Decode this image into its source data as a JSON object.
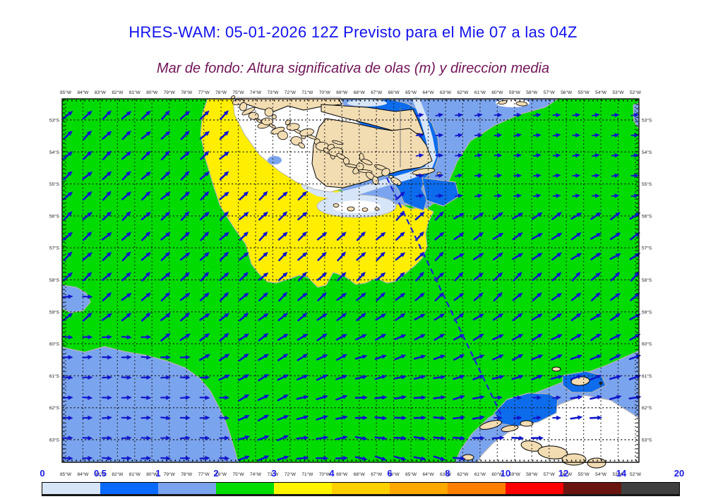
{
  "title": {
    "text": "HRES-WAM: 05-01-2026 12Z Previsto para el Mie 07 a las 04Z",
    "color": "#1212EE"
  },
  "subtitle": {
    "text": "Mar de fondo: Altura significativa de olas (m) y direccion media",
    "color": "#701458"
  },
  "map": {
    "lon_labels": [
      "85°W",
      "84°W",
      "83°W",
      "82°W",
      "81°W",
      "80°W",
      "79°W",
      "78°W",
      "77°W",
      "76°W",
      "75°W",
      "74°W",
      "73°W",
      "72°W",
      "71°W",
      "70°W",
      "69°W",
      "68°W",
      "67°W",
      "66°W",
      "65°W",
      "64°W",
      "63°W",
      "62°W",
      "61°W",
      "60°W",
      "59°W",
      "58°W",
      "57°W",
      "56°W",
      "55°W",
      "54°W",
      "53°W",
      "52°W"
    ],
    "lat_labels": [
      "53°S",
      "54°S",
      "55°S",
      "56°S",
      "57°S",
      "58°S",
      "59°S",
      "60°S",
      "61°S",
      "62°S",
      "63°S"
    ],
    "colors": {
      "sea_0_05": "#D7E5F8",
      "sea_05_1": "#0D6CEC",
      "sea_1_2": "#7BA4EE",
      "sea_2_3": "#02DB02",
      "sea_3_4": "#FFEE00",
      "land": "#F2DCB2",
      "channel_white": "#FFFFFF",
      "coast_outline": "#000000",
      "region_edge": "#B4B4B4",
      "arrow": "#1016CB",
      "grid_dots": "#1A1A1A",
      "track_line": "#2026D6",
      "axis_text": "#222222",
      "political_border": "#777777"
    }
  },
  "legend": {
    "tick_labels": [
      "0",
      "0.5",
      "1",
      "2",
      "3",
      "4",
      "6",
      "8",
      "10",
      "12",
      "14",
      "20"
    ],
    "segment_colors": [
      "#D7E5F8",
      "#0A6AFF",
      "#7BA4EE",
      "#00DD00",
      "#FFF500",
      "#FFD000",
      "#FFA800",
      "#FF8000",
      "#FF0000",
      "#6B1510",
      "#3F3F3F"
    ],
    "tick_color": "#1A1AEE"
  },
  "chart_data": {
    "type": "heatmap",
    "title": "HRES-WAM: 05-01-2026 12Z Previsto para el Mie 07 a las 04Z",
    "subtitle": "Mar de fondo: Altura significativa de olas (m) y direccion media",
    "units": "m",
    "lon_range": [
      "85°W",
      "52°W"
    ],
    "lat_range": [
      "53°S",
      "63°S"
    ],
    "colorbar_bins_m": [
      0,
      0.5,
      1,
      2,
      3,
      4,
      6,
      8,
      10,
      12,
      14,
      20
    ],
    "colorbar_colors": [
      "#D7E5F8",
      "#0A6AFF",
      "#7BA4EE",
      "#00DD00",
      "#FFF500",
      "#FFD000",
      "#FFA800",
      "#FF8000",
      "#FF0000",
      "#6B1510",
      "#3F3F3F"
    ],
    "field_summary": {
      "swell_height_regions_m": {
        "open_pacific_and_drake": "2-3",
        "lobe_sw_of_tierra_del_fuego": "3-4",
        "lee_east_of_tierra_del_fuego": "0.5-1",
        "nearshore_bands": "0-0.5",
        "southwest_and_southeast_low_areas": "1-2"
      },
      "mean_direction": "arrows point NE over the open ocean, E in sheltered low-swell zones"
    }
  }
}
